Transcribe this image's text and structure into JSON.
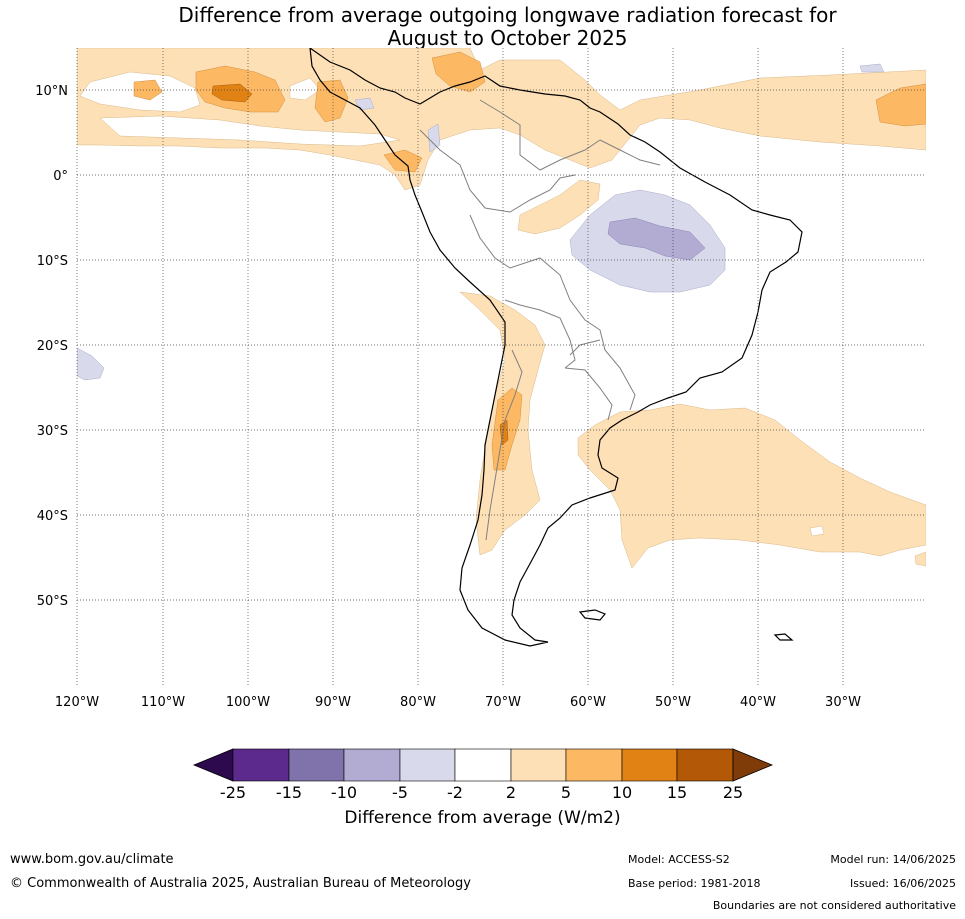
{
  "title_line1": "Difference from average outgoing longwave radiation forecast for",
  "title_line2": "August to October 2025",
  "lat_labels": [
    "10°N",
    "0°",
    "10°S",
    "20°S",
    "30°S",
    "40°S",
    "50°S"
  ],
  "lon_labels": [
    "120°W",
    "110°W",
    "100°W",
    "90°W",
    "80°W",
    "70°W",
    "60°W",
    "50°W",
    "40°W",
    "30°W"
  ],
  "colorbar": {
    "ticks": [
      "-25",
      "-15",
      "-10",
      "-5",
      "-2",
      "2",
      "5",
      "10",
      "15",
      "25"
    ],
    "colors": [
      "#2d0a4e",
      "#5b2a8c",
      "#8073ac",
      "#b2abd2",
      "#d8daeb",
      "#ffffff",
      "#fee0b6",
      "#fdb863",
      "#e08214",
      "#b35806",
      "#7f3b08"
    ],
    "title": "Difference from average (W/m2)"
  },
  "footer": {
    "site": "www.bom.gov.au/climate",
    "copyright": "© Commonwealth of Australia 2025, Australian Bureau of Meteorology",
    "model": "Model: ACCESS-S2",
    "base_period": "Base period: 1981-2018",
    "model_run": "Model run: 14/06/2025",
    "issued": "Issued: 16/06/2025",
    "disclaimer": "Boundaries are not considered authoritative"
  }
}
